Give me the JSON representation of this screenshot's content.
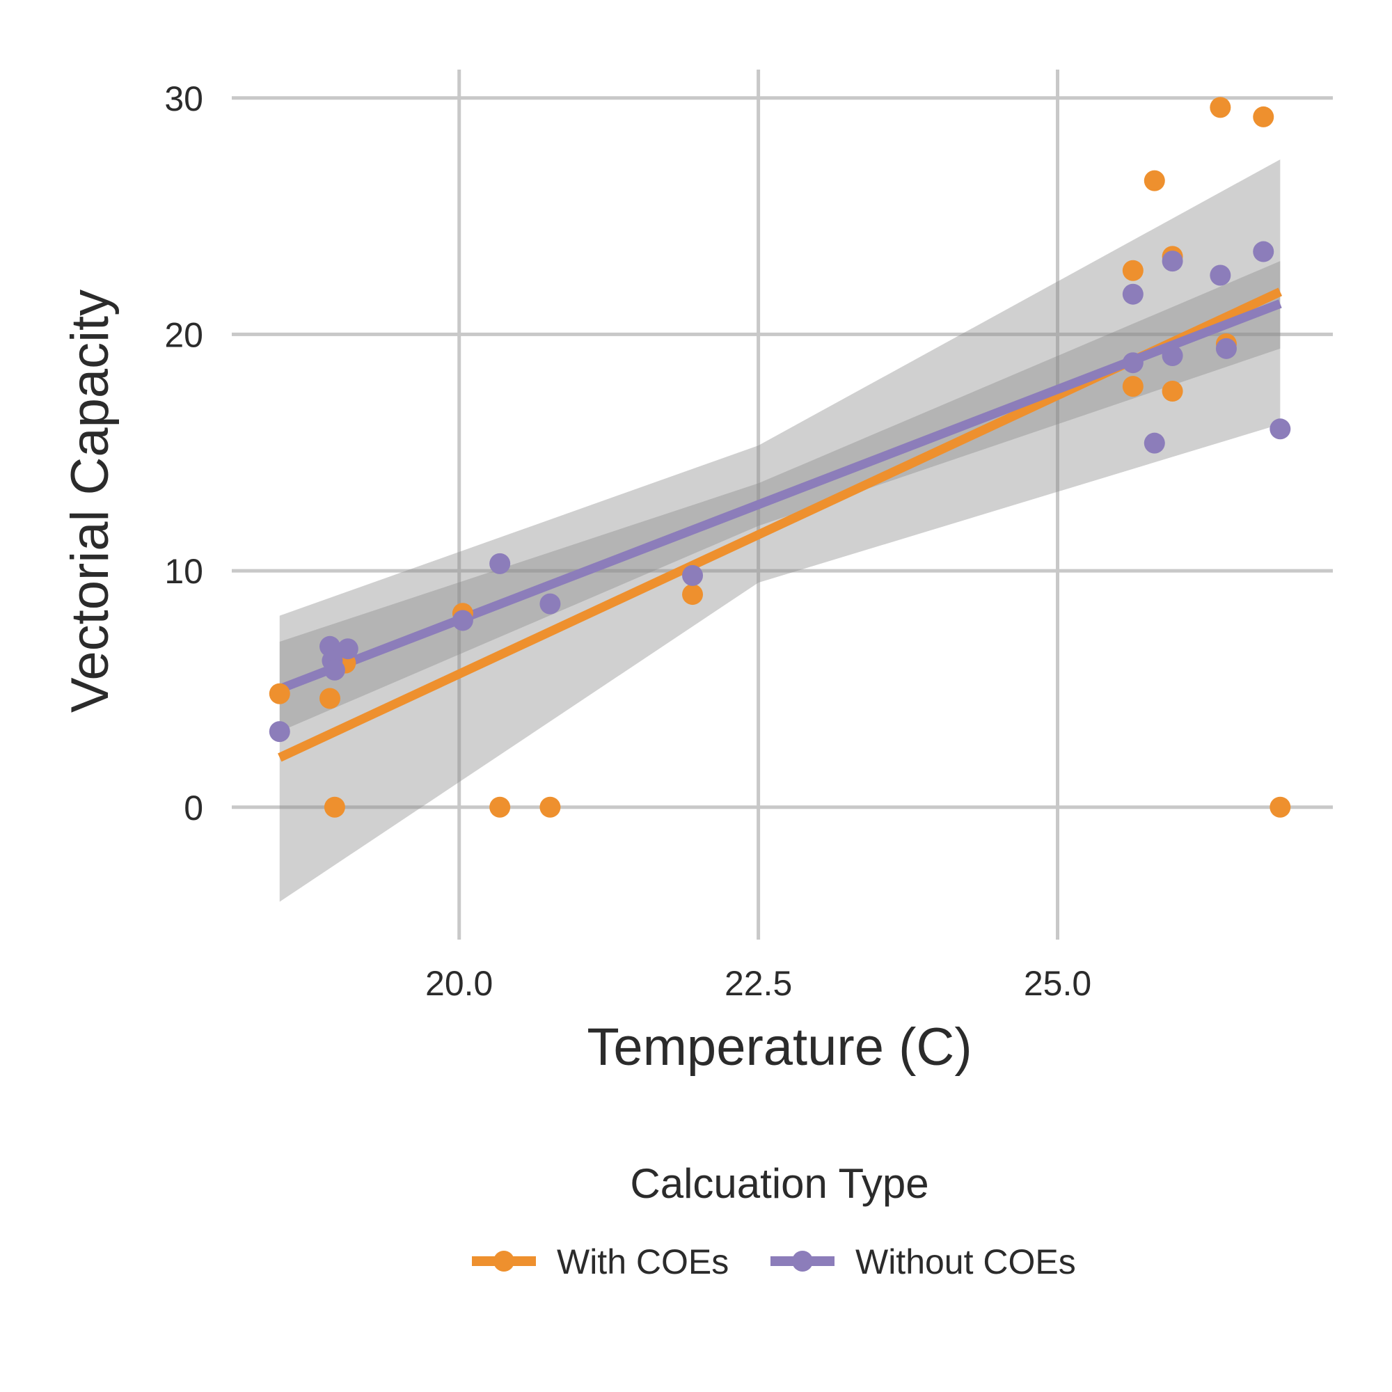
{
  "chart_data": {
    "type": "scatter",
    "title": "",
    "xlabel": "Temperature (C)",
    "ylabel": "Vectorial Capacity",
    "xlim": [
      18.1,
      27.3
    ],
    "ylim": [
      -5.6,
      31.2
    ],
    "x_ticks": [
      20.0,
      22.5,
      25.0
    ],
    "x_tick_labels": [
      "20.0",
      "22.5",
      "25.0"
    ],
    "y_ticks": [
      0,
      10,
      20,
      30
    ],
    "y_tick_labels": [
      "0",
      "10",
      "20",
      "30"
    ],
    "grid": true,
    "legend": {
      "title": "Calcuation Type",
      "position": "bottom"
    },
    "series": [
      {
        "name": "With COEs",
        "color": "#ee902e",
        "points": [
          [
            18.5,
            4.8
          ],
          [
            18.92,
            4.6
          ],
          [
            18.96,
            0.0
          ],
          [
            19.05,
            6.1
          ],
          [
            20.03,
            8.2
          ],
          [
            20.34,
            0.0
          ],
          [
            20.76,
            0.0
          ],
          [
            21.95,
            9.0
          ],
          [
            25.63,
            22.7
          ],
          [
            25.63,
            17.8
          ],
          [
            25.81,
            26.5
          ],
          [
            25.96,
            23.3
          ],
          [
            25.96,
            17.6
          ],
          [
            26.36,
            29.6
          ],
          [
            26.41,
            19.6
          ],
          [
            26.72,
            29.2
          ],
          [
            26.86,
            0.0
          ]
        ],
        "fit": {
          "x": [
            18.5,
            26.86
          ],
          "y": [
            2.1,
            21.8
          ]
        },
        "ci": {
          "x": [
            18.5,
            22.5,
            26.86
          ],
          "lower": [
            -4.0,
            9.5,
            16.2
          ],
          "upper": [
            8.1,
            15.3,
            27.4
          ]
        }
      },
      {
        "name": "Without COEs",
        "color": "#8c7dba",
        "points": [
          [
            18.5,
            3.2
          ],
          [
            18.92,
            6.8
          ],
          [
            18.94,
            6.2
          ],
          [
            18.96,
            5.8
          ],
          [
            19.07,
            6.7
          ],
          [
            20.03,
            7.9
          ],
          [
            20.34,
            10.3
          ],
          [
            20.76,
            8.6
          ],
          [
            21.95,
            9.8
          ],
          [
            25.63,
            21.7
          ],
          [
            25.63,
            18.8
          ],
          [
            25.81,
            15.4
          ],
          [
            25.96,
            23.1
          ],
          [
            25.96,
            19.1
          ],
          [
            26.36,
            22.5
          ],
          [
            26.41,
            19.4
          ],
          [
            26.72,
            23.5
          ],
          [
            26.86,
            16.0
          ]
        ],
        "fit": {
          "x": [
            18.5,
            26.86
          ],
          "y": [
            5.0,
            21.3
          ]
        },
        "ci": {
          "x": [
            18.5,
            22.5,
            26.86
          ],
          "lower": [
            3.2,
            11.9,
            19.4
          ],
          "upper": [
            7.0,
            13.7,
            23.1
          ]
        }
      }
    ]
  }
}
